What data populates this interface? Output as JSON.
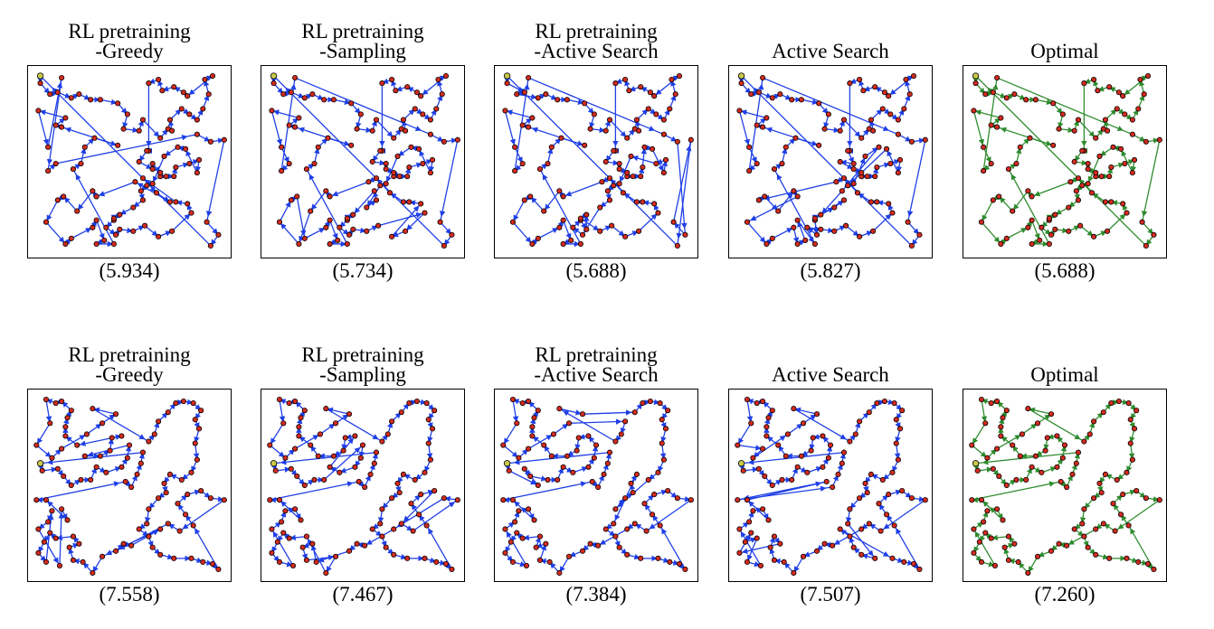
{
  "figure": {
    "rows": [
      {
        "panels": [
          {
            "title": [
              "RL pretraining",
              "-Greedy"
            ],
            "length": "(5.934)",
            "tour_color": "#1f3fe6"
          },
          {
            "title": [
              "RL pretraining",
              "-Sampling"
            ],
            "length": "(5.734)",
            "tour_color": "#1f3fe6"
          },
          {
            "title": [
              "RL pretraining",
              "-Active Search"
            ],
            "length": "(5.688)",
            "tour_color": "#1f3fe6"
          },
          {
            "title": [
              "Active Search"
            ],
            "length": "(5.827)",
            "tour_color": "#1f3fe6"
          },
          {
            "title": [
              "Optimal"
            ],
            "length": "(5.688)",
            "tour_color": "#2e8b2e"
          }
        ]
      },
      {
        "panels": [
          {
            "title": [
              "RL pretraining",
              "-Greedy"
            ],
            "length": "(7.558)",
            "tour_color": "#1f3fe6"
          },
          {
            "title": [
              "RL pretraining",
              "-Sampling"
            ],
            "length": "(7.467)",
            "tour_color": "#1f3fe6"
          },
          {
            "title": [
              "RL pretraining",
              "-Active Search"
            ],
            "length": "(7.384)",
            "tour_color": "#1f3fe6"
          },
          {
            "title": [
              "Active Search"
            ],
            "length": "(7.507)",
            "tour_color": "#1f3fe6"
          },
          {
            "title": [
              "Optimal"
            ],
            "length": "(7.260)",
            "tour_color": "#2e8b2e"
          }
        ]
      }
    ],
    "colors": {
      "city": "#d42a1f",
      "start_city": "#c8c84a",
      "city_edge": "#000000"
    },
    "cities": {
      "row1": [
        [
          0.04,
          0.03
        ],
        [
          0.2,
          0.92
        ],
        [
          0.17,
          0.95
        ],
        [
          0.42,
          0.95
        ],
        [
          0.43,
          0.9
        ],
        [
          0.42,
          0.82
        ],
        [
          0.45,
          0.79
        ],
        [
          0.52,
          0.75
        ],
        [
          0.56,
          0.66
        ],
        [
          0.59,
          0.63
        ],
        [
          0.62,
          0.62
        ],
        [
          0.66,
          0.58
        ],
        [
          0.62,
          0.51
        ],
        [
          0.66,
          0.37
        ],
        [
          0.7,
          0.32
        ],
        [
          0.71,
          0.27
        ],
        [
          0.77,
          0.21
        ],
        [
          0.8,
          0.14
        ],
        [
          0.93,
          0.03
        ],
        [
          0.78,
          0.12
        ],
        [
          0.81,
          0.24
        ],
        [
          0.85,
          0.27
        ],
        [
          0.92,
          0.39
        ],
        [
          0.86,
          0.49
        ],
        [
          0.81,
          0.51
        ],
        [
          0.74,
          0.53
        ],
        [
          0.69,
          0.58
        ],
        [
          0.73,
          0.58
        ],
        [
          0.71,
          0.72
        ],
        [
          0.74,
          0.72
        ],
        [
          0.8,
          0.73
        ],
        [
          0.82,
          0.78
        ],
        [
          0.9,
          0.83
        ],
        [
          0.92,
          0.96
        ],
        [
          0.96,
          0.9
        ],
        [
          0.99,
          0.38
        ],
        [
          0.85,
          0.56
        ],
        [
          0.68,
          0.47
        ],
        [
          0.6,
          0.44
        ],
        [
          0.55,
          0.5
        ],
        [
          0.57,
          0.59
        ],
        [
          0.53,
          0.61
        ],
        [
          0.57,
          0.71
        ],
        [
          0.64,
          0.67
        ],
        [
          0.66,
          0.56
        ],
        [
          0.59,
          0.44
        ],
        [
          0.55,
          0.33
        ],
        [
          0.57,
          0.27
        ],
        [
          0.47,
          0.32
        ],
        [
          0.44,
          0.41
        ],
        [
          0.32,
          0.37
        ],
        [
          0.27,
          0.42
        ],
        [
          0.15,
          0.31
        ],
        [
          0.17,
          0.26
        ],
        [
          0.08,
          0.42
        ],
        [
          0.12,
          0.51
        ],
        [
          0.21,
          0.54
        ],
        [
          0.31,
          0.66
        ],
        [
          0.33,
          0.82
        ],
        [
          0.42,
          0.81
        ],
        [
          0.37,
          0.93
        ],
        [
          0.33,
          0.95
        ],
        [
          0.07,
          0.83
        ],
        [
          0.13,
          0.71
        ],
        [
          0.33,
          0.69
        ],
        [
          0.25,
          0.51
        ],
        [
          0.3,
          0.16
        ],
        [
          0.44,
          0.18
        ],
        [
          0.6,
          0.07
        ],
        [
          0.65,
          0.05
        ],
        [
          0.67,
          0.11
        ],
        [
          0.73,
          0.09
        ],
        [
          0.89,
          0.05
        ],
        [
          0.91,
          0.13
        ],
        [
          0.88,
          0.21
        ],
        [
          0.85,
          0.35
        ],
        [
          0.79,
          0.43
        ],
        [
          0.62,
          0.54
        ],
        [
          0.75,
          0.42
        ],
        [
          0.72,
          0.33
        ],
        [
          0.49,
          0.24
        ],
        [
          0.35,
          0.16
        ],
        [
          0.24,
          0.13
        ],
        [
          0.13,
          0.12
        ],
        [
          0.03,
          0.22
        ],
        [
          0.09,
          0.13
        ],
        [
          0.04,
          0.07
        ],
        [
          0.15,
          0.04
        ],
        [
          0.2,
          0.15
        ],
        [
          0.12,
          0.3
        ],
        [
          0.08,
          0.55
        ],
        [
          0.16,
          0.69
        ],
        [
          0.23,
          0.77
        ],
        [
          0.31,
          0.86
        ],
        [
          0.38,
          0.86
        ],
        [
          0.45,
          0.87
        ],
        [
          0.52,
          0.88
        ],
        [
          0.58,
          0.85
        ],
        [
          0.65,
          0.91
        ],
        [
          0.72,
          0.88
        ]
      ],
      "row2": [
        [
          0.04,
          0.38
        ],
        [
          0.07,
          0.03
        ],
        [
          0.12,
          0.05
        ],
        [
          0.15,
          0.04
        ],
        [
          0.2,
          0.09
        ],
        [
          0.18,
          0.13
        ],
        [
          0.17,
          0.18
        ],
        [
          0.17,
          0.23
        ],
        [
          0.15,
          0.3
        ],
        [
          0.1,
          0.35
        ],
        [
          0.13,
          0.41
        ],
        [
          0.16,
          0.45
        ],
        [
          0.2,
          0.5
        ],
        [
          0.25,
          0.47
        ],
        [
          0.3,
          0.47
        ],
        [
          0.33,
          0.4
        ],
        [
          0.35,
          0.34
        ],
        [
          0.4,
          0.31
        ],
        [
          0.41,
          0.24
        ],
        [
          0.46,
          0.23
        ],
        [
          0.5,
          0.28
        ],
        [
          0.49,
          0.35
        ],
        [
          0.46,
          0.4
        ],
        [
          0.48,
          0.48
        ],
        [
          0.51,
          0.51
        ],
        [
          0.54,
          0.44
        ],
        [
          0.56,
          0.38
        ],
        [
          0.57,
          0.32
        ],
        [
          0.6,
          0.26
        ],
        [
          0.63,
          0.22
        ],
        [
          0.65,
          0.15
        ],
        [
          0.7,
          0.1
        ],
        [
          0.74,
          0.05
        ],
        [
          0.78,
          0.04
        ],
        [
          0.83,
          0.05
        ],
        [
          0.87,
          0.09
        ],
        [
          0.84,
          0.14
        ],
        [
          0.86,
          0.19
        ],
        [
          0.84,
          0.27
        ],
        [
          0.85,
          0.36
        ],
        [
          0.82,
          0.43
        ],
        [
          0.77,
          0.47
        ],
        [
          0.71,
          0.44
        ],
        [
          0.68,
          0.49
        ],
        [
          0.69,
          0.54
        ],
        [
          0.65,
          0.57
        ],
        [
          0.6,
          0.63
        ],
        [
          0.59,
          0.71
        ],
        [
          0.6,
          0.78
        ],
        [
          0.62,
          0.84
        ],
        [
          0.66,
          0.88
        ],
        [
          0.73,
          0.9
        ],
        [
          0.82,
          0.9
        ],
        [
          0.88,
          0.92
        ],
        [
          0.93,
          0.93
        ],
        [
          0.96,
          0.96
        ],
        [
          0.99,
          0.58
        ],
        [
          0.92,
          0.57
        ],
        [
          0.87,
          0.53
        ],
        [
          0.8,
          0.55
        ],
        [
          0.75,
          0.6
        ],
        [
          0.79,
          0.66
        ],
        [
          0.83,
          0.72
        ],
        [
          0.76,
          0.75
        ],
        [
          0.7,
          0.71
        ],
        [
          0.66,
          0.74
        ],
        [
          0.55,
          0.74
        ],
        [
          0.51,
          0.83
        ],
        [
          0.47,
          0.82
        ],
        [
          0.43,
          0.86
        ],
        [
          0.36,
          0.89
        ],
        [
          0.31,
          0.98
        ],
        [
          0.26,
          0.92
        ],
        [
          0.24,
          0.82
        ],
        [
          0.21,
          0.78
        ],
        [
          0.18,
          0.69
        ],
        [
          0.15,
          0.63
        ],
        [
          0.1,
          0.64
        ],
        [
          0.08,
          0.7
        ],
        [
          0.09,
          0.76
        ],
        [
          0.12,
          0.79
        ],
        [
          0.19,
          0.84
        ],
        [
          0.21,
          0.91
        ],
        [
          0.14,
          0.94
        ],
        [
          0.07,
          0.92
        ],
        [
          0.03,
          0.87
        ],
        [
          0.06,
          0.81
        ],
        [
          0.03,
          0.74
        ],
        [
          0.07,
          0.58
        ],
        [
          0.02,
          0.58
        ],
        [
          0.05,
          0.42
        ],
        [
          0.02,
          0.28
        ],
        [
          0.09,
          0.16
        ],
        [
          0.23,
          0.28
        ],
        [
          0.28,
          0.22
        ],
        [
          0.36,
          0.16
        ],
        [
          0.43,
          0.11
        ],
        [
          0.31,
          0.08
        ],
        [
          0.27,
          0.34
        ],
        [
          0.38,
          0.43
        ]
      ]
    }
  }
}
